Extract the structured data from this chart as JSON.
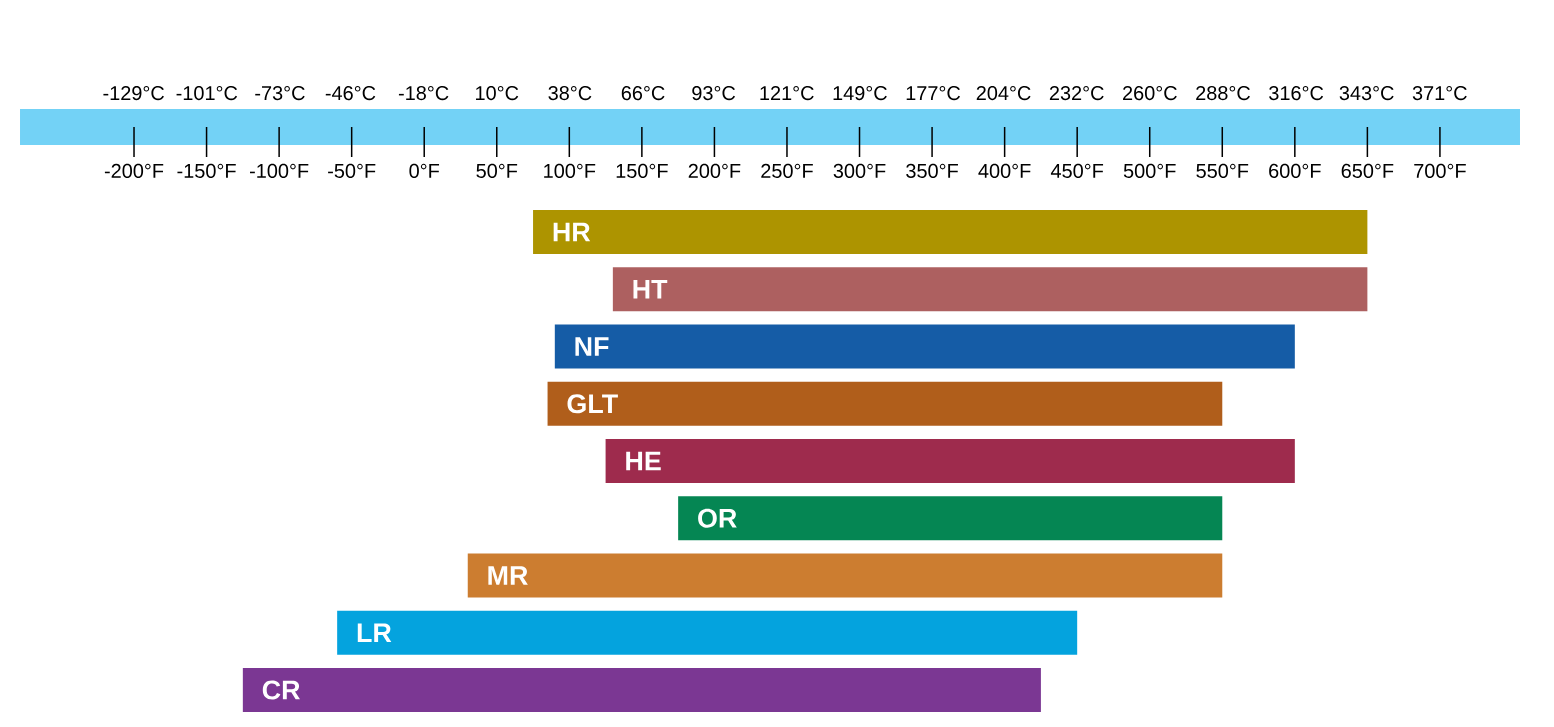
{
  "chart_data": {
    "type": "bar",
    "orientation": "horizontal",
    "categories": [
      "HR",
      "HT",
      "NF",
      "GLT",
      "HE",
      "OR",
      "MR",
      "LR",
      "CR"
    ],
    "base": [
      75,
      130,
      90,
      85,
      125,
      175,
      30,
      -60,
      -125
    ],
    "values": [
      575,
      520,
      510,
      465,
      475,
      375,
      520,
      510,
      550
    ],
    "colors": [
      "#ad9400",
      "#ad6060",
      "#155ca6",
      "#b05e1b",
      "#9e2b4d",
      "#058653",
      "#cc7d30",
      "#04a3de",
      "#7b3793"
    ],
    "xlim": [
      -200,
      700
    ],
    "xticks": [
      {
        "value": -200,
        "label": "-200°F"
      },
      {
        "value": -150,
        "label": "-150°F"
      },
      {
        "value": -100,
        "label": "-100°F"
      },
      {
        "value": -50,
        "label": "-50°F"
      },
      {
        "value": 0,
        "label": "0°F"
      },
      {
        "value": 50,
        "label": "50°F"
      },
      {
        "value": 100,
        "label": "100°F"
      },
      {
        "value": 150,
        "label": "150°F"
      },
      {
        "value": 200,
        "label": "200°F"
      },
      {
        "value": 250,
        "label": "250°F"
      },
      {
        "value": 300,
        "label": "300°F"
      },
      {
        "value": 350,
        "label": "350°F"
      },
      {
        "value": 400,
        "label": "400°F"
      },
      {
        "value": 450,
        "label": "450°F"
      },
      {
        "value": 500,
        "label": "500°F"
      },
      {
        "value": 550,
        "label": "550°F"
      },
      {
        "value": 600,
        "label": "600°F"
      },
      {
        "value": 650,
        "label": "650°F"
      },
      {
        "value": 700,
        "label": "700°F"
      }
    ],
    "x2lim": [
      -172.5,
      401.7
    ],
    "x2ticks": [
      {
        "value": -129,
        "label": "-129°C"
      },
      {
        "value": -101,
        "label": "-101°C"
      },
      {
        "value": -73,
        "label": "-73°C"
      },
      {
        "value": -46,
        "label": "-46°C"
      },
      {
        "value": -18,
        "label": "-18°C"
      },
      {
        "value": 10,
        "label": "10°C"
      },
      {
        "value": 38,
        "label": "38°C"
      },
      {
        "value": 66,
        "label": "66°C"
      },
      {
        "value": 93,
        "label": "93°C"
      },
      {
        "value": 121,
        "label": "121°C"
      },
      {
        "value": 149,
        "label": "149°C"
      },
      {
        "value": 177,
        "label": "177°C"
      },
      {
        "value": 204,
        "label": "204°C"
      },
      {
        "value": 232,
        "label": "232°C"
      },
      {
        "value": 260,
        "label": "260°C"
      },
      {
        "value": 288,
        "label": "288°C"
      },
      {
        "value": 316,
        "label": "316°C"
      },
      {
        "value": 343,
        "label": "343°C"
      },
      {
        "value": 371,
        "label": "371°C"
      }
    ]
  }
}
